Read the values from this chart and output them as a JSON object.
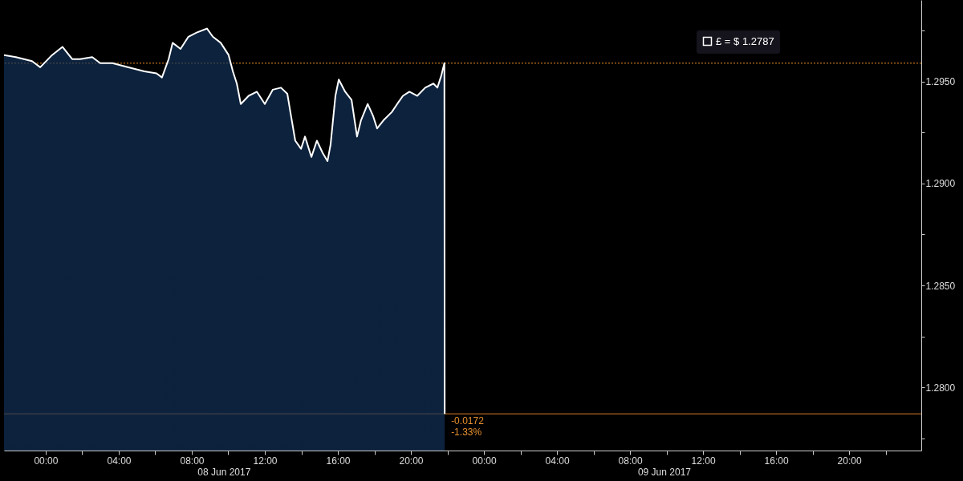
{
  "chart_data": {
    "type": "area",
    "x": [
      "2017-06-07T21:43",
      "2017-06-07T22:22",
      "2017-06-07T23:15",
      "2017-06-07T23:42",
      "2017-06-08T00:21",
      "2017-06-08T00:55",
      "2017-06-08T01:27",
      "2017-06-08T01:53",
      "2017-06-08T02:33",
      "2017-06-08T02:59",
      "2017-06-08T03:39",
      "2017-06-08T04:32",
      "2017-06-08T05:24",
      "2017-06-08T06:04",
      "2017-06-08T06:22",
      "2017-06-08T06:44",
      "2017-06-08T06:57",
      "2017-06-08T07:23",
      "2017-06-08T07:49",
      "2017-06-08T08:16",
      "2017-06-08T08:50",
      "2017-06-08T09:09",
      "2017-06-08T09:35",
      "2017-06-08T10:01",
      "2017-06-08T10:15",
      "2017-06-08T10:28",
      "2017-06-08T10:41",
      "2017-06-08T11:07",
      "2017-06-08T11:34",
      "2017-06-08T12:00",
      "2017-06-08T12:26",
      "2017-06-08T12:53",
      "2017-06-08T13:14",
      "2017-06-08T13:24",
      "2017-06-08T13:40",
      "2017-06-08T13:59",
      "2017-06-08T14:12",
      "2017-06-08T14:33",
      "2017-06-08T14:51",
      "2017-06-08T15:10",
      "2017-06-08T15:26",
      "2017-06-08T15:36",
      "2017-06-08T15:52",
      "2017-06-08T16:03",
      "2017-06-08T16:24",
      "2017-06-08T16:45",
      "2017-06-08T17:03",
      "2017-06-08T17:16",
      "2017-06-08T17:38",
      "2017-06-08T17:56",
      "2017-06-08T18:09",
      "2017-06-08T18:30",
      "2017-06-08T18:57",
      "2017-06-08T19:15",
      "2017-06-08T19:34",
      "2017-06-08T19:55",
      "2017-06-08T20:21",
      "2017-06-08T20:47",
      "2017-06-08T21:14",
      "2017-06-08T21:27",
      "2017-06-08T21:40",
      "2017-06-08T21:50",
      "2017-06-08T21:51"
    ],
    "series": [
      {
        "name": "£ = $ 1.2787",
        "color": "#ffffff",
        "values": [
          1.2963,
          1.2962,
          1.296,
          1.2957,
          1.2963,
          1.2967,
          1.2961,
          1.2961,
          1.2962,
          1.2959,
          1.2959,
          1.2957,
          1.2955,
          1.2954,
          1.2952,
          1.2961,
          1.2969,
          1.2966,
          1.2972,
          1.2974,
          1.2976,
          1.2972,
          1.2969,
          1.2963,
          1.2955,
          1.2949,
          1.2939,
          1.2943,
          1.2945,
          1.2939,
          1.2946,
          1.2947,
          1.2944,
          1.2935,
          1.2921,
          1.2917,
          1.2923,
          1.2913,
          1.2921,
          1.2915,
          1.2911,
          1.2919,
          1.2943,
          1.2951,
          1.2945,
          1.2941,
          1.2923,
          1.2931,
          1.2939,
          1.2933,
          1.2927,
          1.2931,
          1.2935,
          1.2939,
          1.2943,
          1.2945,
          1.2943,
          1.2947,
          1.2949,
          1.2947,
          1.2953,
          1.2959,
          1.2787
        ]
      }
    ],
    "xlim": [
      "2017-06-07T21:43",
      "2017-06-09T23:57"
    ],
    "xticks": [
      {
        "value": "2017-06-08T00:00",
        "label": "00:00"
      },
      {
        "value": "2017-06-08T02:00",
        "label": null
      },
      {
        "value": "2017-06-08T04:00",
        "label": "04:00"
      },
      {
        "value": "2017-06-08T06:00",
        "label": null
      },
      {
        "value": "2017-06-08T08:00",
        "label": "08:00"
      },
      {
        "value": "2017-06-08T10:00",
        "label": null
      },
      {
        "value": "2017-06-08T12:00",
        "label": "12:00"
      },
      {
        "value": "2017-06-08T14:00",
        "label": null
      },
      {
        "value": "2017-06-08T16:00",
        "label": "16:00"
      },
      {
        "value": "2017-06-08T18:00",
        "label": null
      },
      {
        "value": "2017-06-08T20:00",
        "label": "20:00"
      },
      {
        "value": "2017-06-08T22:00",
        "label": null
      },
      {
        "value": "2017-06-09T00:00",
        "label": "00:00"
      },
      {
        "value": "2017-06-09T02:00",
        "label": null
      },
      {
        "value": "2017-06-09T04:00",
        "label": "04:00"
      },
      {
        "value": "2017-06-09T06:00",
        "label": null
      },
      {
        "value": "2017-06-09T08:00",
        "label": "08:00"
      },
      {
        "value": "2017-06-09T10:00",
        "label": null
      },
      {
        "value": "2017-06-09T12:00",
        "label": "12:00"
      },
      {
        "value": "2017-06-09T14:00",
        "label": null
      },
      {
        "value": "2017-06-09T16:00",
        "label": "16:00"
      },
      {
        "value": "2017-06-09T18:00",
        "label": null
      },
      {
        "value": "2017-06-09T20:00",
        "label": "20:00"
      },
      {
        "value": "2017-06-09T22:00",
        "label": null
      }
    ],
    "ylim": [
      1.2769,
      1.299
    ],
    "yticks": [
      {
        "value": 1.2775,
        "label": null
      },
      {
        "value": 1.28,
        "label": "1.2800"
      },
      {
        "value": 1.2825,
        "label": null
      },
      {
        "value": 1.285,
        "label": "1.2850"
      },
      {
        "value": 1.2875,
        "label": null
      },
      {
        "value": 1.29,
        "label": "1.2900"
      },
      {
        "value": 1.2925,
        "label": null
      },
      {
        "value": 1.295,
        "label": "1.2950"
      },
      {
        "value": 1.2975,
        "label": null
      }
    ],
    "ref_lines": [
      {
        "axis": "y",
        "value": 1.2959,
        "color": "#f0922b",
        "line_style": "dotted"
      },
      {
        "axis": "y",
        "value": 1.2787,
        "color": "#d9822b",
        "line_style": "solid"
      }
    ],
    "annotations": [
      {
        "text": "-0.0172",
        "x": "2017-06-08T21:51",
        "y": 1.2787
      },
      {
        "text": "-1.33%",
        "x": "2017-06-08T21:51",
        "y": 1.2787
      },
      "08 Jun 2017",
      "09 Jun 2017"
    ],
    "legend": "top right"
  }
}
